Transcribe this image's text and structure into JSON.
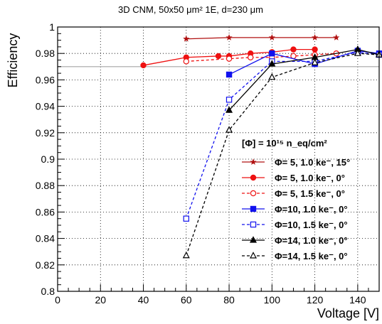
{
  "chart_data": {
    "type": "line",
    "title": "3D CNM, 50x50 μm² 1E, d=230 μm",
    "xlabel": "Voltage [V]",
    "ylabel": "Efficiency",
    "xlim": [
      0,
      150
    ],
    "ylim": [
      0.8,
      1.0
    ],
    "x_ticks": [
      "0",
      "20",
      "40",
      "60",
      "80",
      "100",
      "120",
      "140"
    ],
    "y_ticks": [
      "0.8",
      "0.82",
      "0.84",
      "0.86",
      "0.88",
      "0.9",
      "0.92",
      "0.94",
      "0.96",
      "0.98",
      "1"
    ],
    "x_tick_values": [
      0,
      20,
      40,
      60,
      80,
      100,
      120,
      140
    ],
    "y_tick_values": [
      0.8,
      0.82,
      0.84,
      0.86,
      0.88,
      0.9,
      0.92,
      0.94,
      0.96,
      0.98,
      1.0
    ],
    "reference_line": 0.97,
    "grid": true,
    "legend_position": "right",
    "legend_header": "[Φ] = 10¹⁵ n_eq/cm²",
    "series": [
      {
        "name": "Φ= 5, 1.0 ke⁻, 15°",
        "color": "#b01010",
        "marker": "star",
        "dash": false,
        "points": [
          [
            60,
            0.991
          ],
          [
            80,
            0.992
          ],
          [
            100,
            0.992
          ],
          [
            120,
            0.992
          ],
          [
            130,
            0.992
          ]
        ]
      },
      {
        "name": "Φ= 5, 1.0 ke⁻, 0°",
        "color": "#ee1111",
        "marker": "circle-filled",
        "dash": false,
        "points": [
          [
            40,
            0.971
          ],
          [
            60,
            0.977
          ],
          [
            75,
            0.978
          ],
          [
            80,
            0.978
          ],
          [
            90,
            0.98
          ],
          [
            100,
            0.981
          ],
          [
            110,
            0.983
          ],
          [
            120,
            0.983
          ]
        ]
      },
      {
        "name": "Φ= 5, 1.5 ke⁻, 0°",
        "color": "#ee1111",
        "marker": "circle-open",
        "dash": true,
        "points": [
          [
            60,
            0.974
          ],
          [
            80,
            0.976
          ],
          [
            90,
            0.977
          ],
          [
            100,
            0.977
          ],
          [
            110,
            0.978
          ],
          [
            120,
            0.979
          ],
          [
            130,
            0.98
          ]
        ]
      },
      {
        "name": "Φ=10, 1.0 ke⁻, 0°",
        "color": "#1111ee",
        "marker": "square-filled",
        "dash": false,
        "points": [
          [
            80,
            0.964
          ],
          [
            100,
            0.98
          ],
          [
            120,
            0.972
          ],
          [
            140,
            0.982
          ],
          [
            150,
            0.98
          ]
        ]
      },
      {
        "name": "Φ=10, 1.5 ke⁻, 0°",
        "color": "#1111ee",
        "marker": "square-open",
        "dash": true,
        "points": [
          [
            60,
            0.855
          ],
          [
            80,
            0.945
          ],
          [
            100,
            0.974
          ],
          [
            120,
            0.974
          ],
          [
            140,
            0.981
          ],
          [
            150,
            0.979
          ]
        ]
      },
      {
        "name": "Φ=14, 1.0 ke⁻, 0°",
        "color": "#000000",
        "marker": "triangle-filled",
        "dash": false,
        "points": [
          [
            80,
            0.937
          ],
          [
            100,
            0.972
          ],
          [
            120,
            0.977
          ],
          [
            140,
            0.983
          ],
          [
            150,
            0.979
          ]
        ]
      },
      {
        "name": "Φ=14, 1.5 ke⁻, 0°",
        "color": "#000000",
        "marker": "triangle-open",
        "dash": true,
        "points": [
          [
            60,
            0.827
          ],
          [
            80,
            0.922
          ],
          [
            100,
            0.962
          ],
          [
            120,
            0.973
          ],
          [
            140,
            0.98
          ],
          [
            150,
            0.979
          ]
        ]
      }
    ]
  }
}
